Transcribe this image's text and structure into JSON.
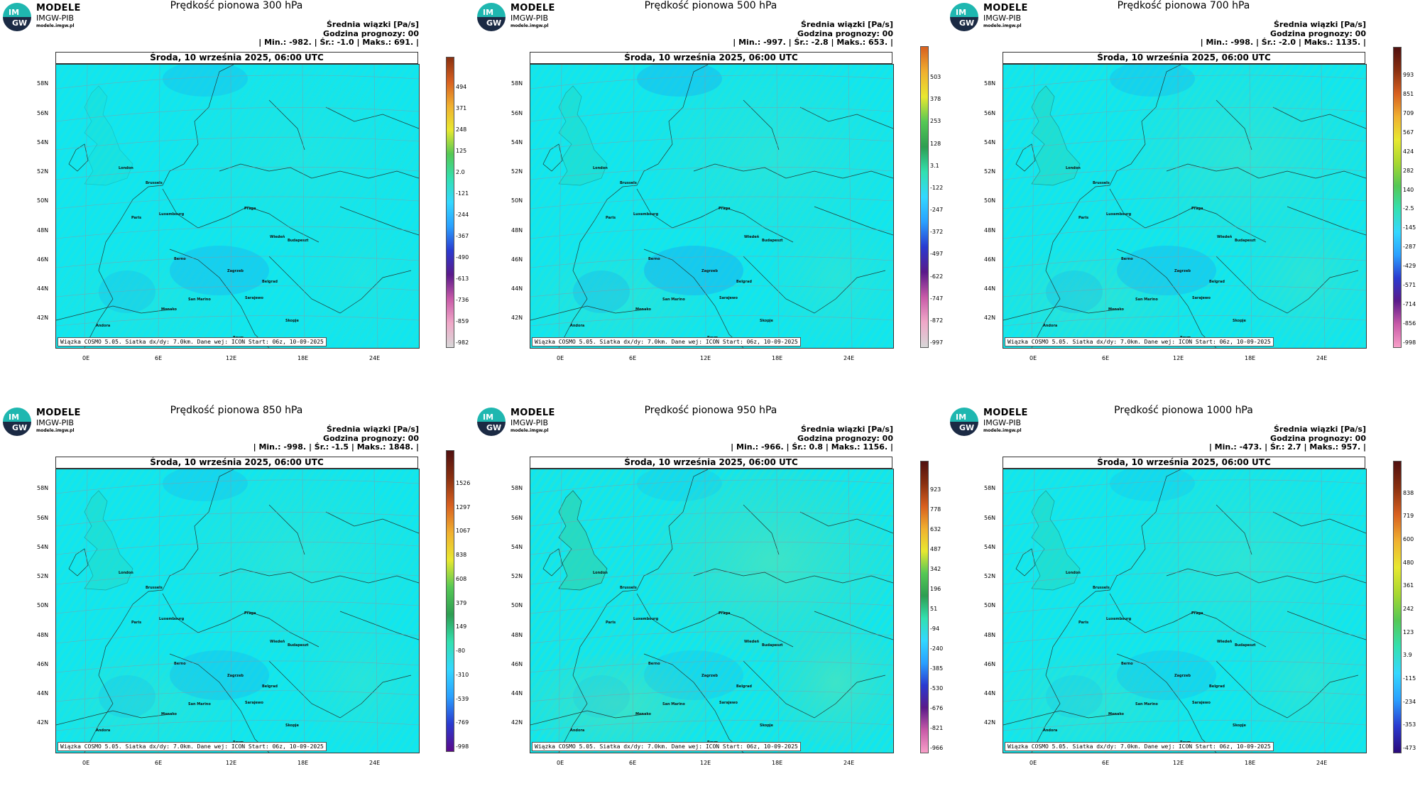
{
  "logo": {
    "line1": "MODELE",
    "line2": "IMGW-PIB",
    "line3": "modele.imgw.pl",
    "badge_top": "IM",
    "badge_bottom": "GW"
  },
  "common": {
    "date": "Środa, 10 września 2025, 06:00 UTC",
    "mean_label": "Średnia wiązki [Pa/s]",
    "forecast_hour": "Godzina prognozy: 00",
    "source": "Wiązka COSMO 5.05. Siatka dx/dy: 7.0km. Dane wej: ICON Start: 06z, 10-09-2025",
    "lat_labels": [
      "58N",
      "56N",
      "54N",
      "52N",
      "50N",
      "48N",
      "46N",
      "44N",
      "42N"
    ],
    "lon_labels": [
      "0E",
      "6E",
      "12E",
      "18E",
      "24E"
    ],
    "cities": [
      "London",
      "Brussels",
      "Paris",
      "Luxembourg",
      "Praga",
      "Wiedeń",
      "Budapeszt",
      "Berno",
      "Zagrzeb",
      "Belgrad",
      "San Marino",
      "Sarajewo",
      "Andora",
      "Monako",
      "Rzym",
      "Skopje"
    ]
  },
  "panels": [
    {
      "title": "Prędkość pionowa 300 hPa",
      "stats": "| Min.:   -982. | Śr.:   -1.0 | Maks.:   691. |",
      "colorbar_labels": [
        "494",
        "371",
        "248",
        "125",
        "2.0",
        "-121",
        "-244",
        "-367",
        "-490",
        "-613",
        "-736",
        "-859",
        "-982"
      ]
    },
    {
      "title": "Prędkość pionowa 500 hPa",
      "stats": "| Min.:   -997. | Śr.:   -2.8 | Maks.:   653. |",
      "colorbar_labels": [
        "503",
        "378",
        "253",
        "128",
        "3.1",
        "-122",
        "-247",
        "-372",
        "-497",
        "-622",
        "-747",
        "-872",
        "-997"
      ]
    },
    {
      "title": "Prędkość pionowa 700 hPa",
      "stats": "| Min.:   -998. | Śr.:   -2.0 | Maks.:  1135. |",
      "colorbar_labels": [
        "993",
        "851",
        "709",
        "567",
        "424",
        "282",
        "140",
        "-2.5",
        "-145",
        "-287",
        "-429",
        "-571",
        "-714",
        "-856",
        "-998"
      ]
    },
    {
      "title": "Prędkość pionowa 850 hPa",
      "stats": "| Min.:   -998. | Śr.:   -1.5 | Maks.:  1848. |",
      "colorbar_labels": [
        "1526",
        "1297",
        "1067",
        "838",
        "608",
        "379",
        "149",
        "-80",
        "-310",
        "-539",
        "-769",
        "-998"
      ]
    },
    {
      "title": "Prędkość pionowa 950 hPa",
      "stats": "| Min.:   -966. | Śr.:   0.8 | Maks.:  1156. |",
      "colorbar_labels": [
        "923",
        "778",
        "632",
        "487",
        "342",
        "196",
        "51",
        "-94",
        "-240",
        "-385",
        "-530",
        "-676",
        "-821",
        "-966"
      ]
    },
    {
      "title": "Prędkość pionowa 1000 hPa",
      "stats": "| Min.:   -473. | Śr.:   2.7 | Maks.:   957. |",
      "colorbar_labels": [
        "838",
        "719",
        "600",
        "480",
        "361",
        "242",
        "123",
        "3.9",
        "-115",
        "-234",
        "-353",
        "-473"
      ]
    }
  ]
}
